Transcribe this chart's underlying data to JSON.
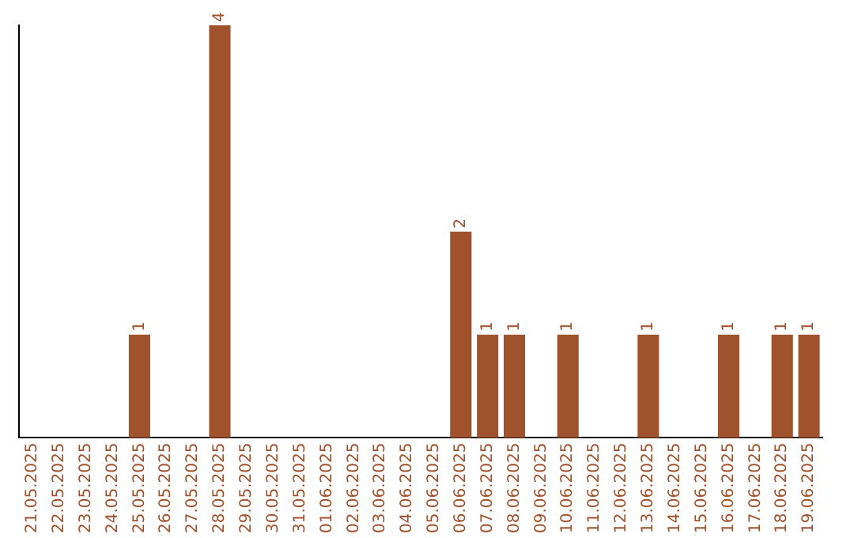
{
  "chart_data": {
    "type": "bar",
    "categories": [
      "21.05.2025",
      "22.05.2025",
      "23.05.2025",
      "24.05.2025",
      "25.05.2025",
      "26.05.2025",
      "27.05.2025",
      "28.05.2025",
      "29.05.2025",
      "30.05.2025",
      "31.05.2025",
      "01.06.2025",
      "02.06.2025",
      "03.06.2025",
      "04.06.2025",
      "05.06.2025",
      "06.06.2025",
      "07.06.2025",
      "08.06.2025",
      "09.06.2025",
      "10.06.2025",
      "11.06.2025",
      "12.06.2025",
      "13.06.2025",
      "14.06.2025",
      "15.06.2025",
      "16.06.2025",
      "17.06.2025",
      "18.06.2025",
      "19.06.2025"
    ],
    "values": [
      0,
      0,
      0,
      0,
      1,
      0,
      0,
      4,
      0,
      0,
      0,
      0,
      0,
      0,
      0,
      0,
      2,
      1,
      1,
      0,
      1,
      0,
      0,
      1,
      0,
      0,
      1,
      0,
      1,
      1
    ],
    "value_labels": [
      null,
      null,
      null,
      null,
      "1",
      null,
      null,
      "4",
      null,
      null,
      null,
      null,
      null,
      null,
      null,
      null,
      "2",
      "1",
      "1",
      null,
      "1",
      null,
      null,
      "1",
      null,
      null,
      "1",
      null,
      "1",
      "1"
    ],
    "color": "#a0522d",
    "grid": false,
    "legend": false
  }
}
